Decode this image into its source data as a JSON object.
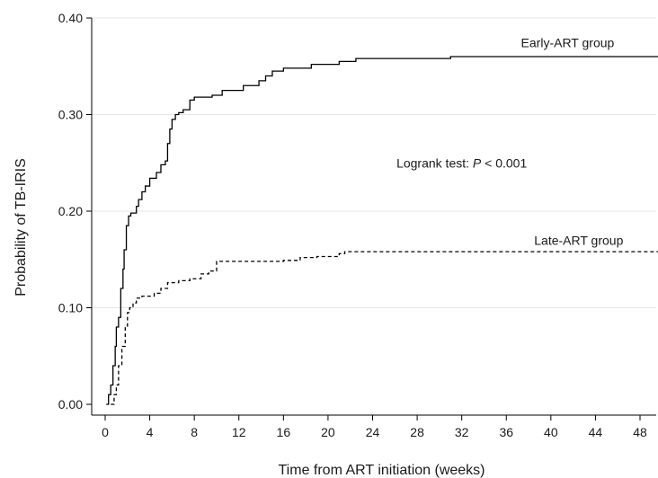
{
  "chart_data": {
    "type": "line",
    "title": "",
    "xlabel": "Time from ART initiation (weeks)",
    "ylabel": "Probability of TB-IRIS",
    "xlim": [
      0,
      50
    ],
    "ylim": [
      0,
      0.4
    ],
    "x_ticks": [
      0,
      4,
      8,
      12,
      16,
      20,
      24,
      28,
      32,
      36,
      40,
      44,
      48
    ],
    "y_ticks": [
      0.0,
      0.1,
      0.2,
      0.3,
      0.4
    ],
    "y_tick_labels": [
      "0.00",
      "0.10",
      "0.20",
      "0.30",
      "0.40"
    ],
    "grid": "horizontal",
    "step": true,
    "annotation": {
      "prefix": "Logrank test: ",
      "p_symbol": "P",
      "suffix": " < 0.001",
      "x": 32,
      "y": 0.245
    },
    "series": [
      {
        "name": "Early-ART group",
        "style": "solid",
        "color": "#000000",
        "label_pos": {
          "x": 41.5,
          "y": 0.37
        },
        "x": [
          0.1,
          0.3,
          0.5,
          0.7,
          0.9,
          1.0,
          1.2,
          1.4,
          1.6,
          1.7,
          1.9,
          2.1,
          2.3,
          2.8,
          3.0,
          3.3,
          3.6,
          4.0,
          4.6,
          5.0,
          5.4,
          5.6,
          5.8,
          6.0,
          6.3,
          6.6,
          7.0,
          7.6,
          8.0,
          8.4,
          9.6,
          10.5,
          11.2,
          12.4,
          13.8,
          14.4,
          15.0,
          16.0,
          17.2,
          18.5,
          21.0,
          22.5,
          25.0,
          31.0,
          32.0,
          50.0
        ],
        "y": [
          0.0,
          0.01,
          0.02,
          0.04,
          0.06,
          0.08,
          0.09,
          0.12,
          0.14,
          0.16,
          0.185,
          0.195,
          0.198,
          0.205,
          0.212,
          0.22,
          0.226,
          0.234,
          0.24,
          0.248,
          0.252,
          0.27,
          0.285,
          0.295,
          0.3,
          0.302,
          0.305,
          0.315,
          0.318,
          0.318,
          0.32,
          0.325,
          0.325,
          0.33,
          0.335,
          0.34,
          0.345,
          0.348,
          0.348,
          0.352,
          0.355,
          0.358,
          0.358,
          0.36,
          0.36,
          0.36
        ]
      },
      {
        "name": "Late-ART group",
        "style": "dashed",
        "color": "#000000",
        "label_pos": {
          "x": 42.5,
          "y": 0.165
        },
        "x": [
          0.5,
          0.8,
          1.0,
          1.2,
          1.5,
          1.8,
          2.0,
          2.2,
          2.5,
          2.8,
          3.3,
          4.4,
          5.0,
          5.6,
          6.6,
          7.6,
          8.6,
          9.3,
          10.0,
          12.0,
          16.0,
          17.5,
          19.0,
          21.0,
          21.5,
          24.0,
          32.0,
          50.0
        ],
        "y": [
          0.0,
          0.01,
          0.02,
          0.04,
          0.06,
          0.08,
          0.095,
          0.1,
          0.105,
          0.11,
          0.112,
          0.115,
          0.12,
          0.126,
          0.128,
          0.13,
          0.135,
          0.138,
          0.148,
          0.148,
          0.149,
          0.152,
          0.153,
          0.156,
          0.158,
          0.158,
          0.158,
          0.158
        ]
      }
    ]
  }
}
